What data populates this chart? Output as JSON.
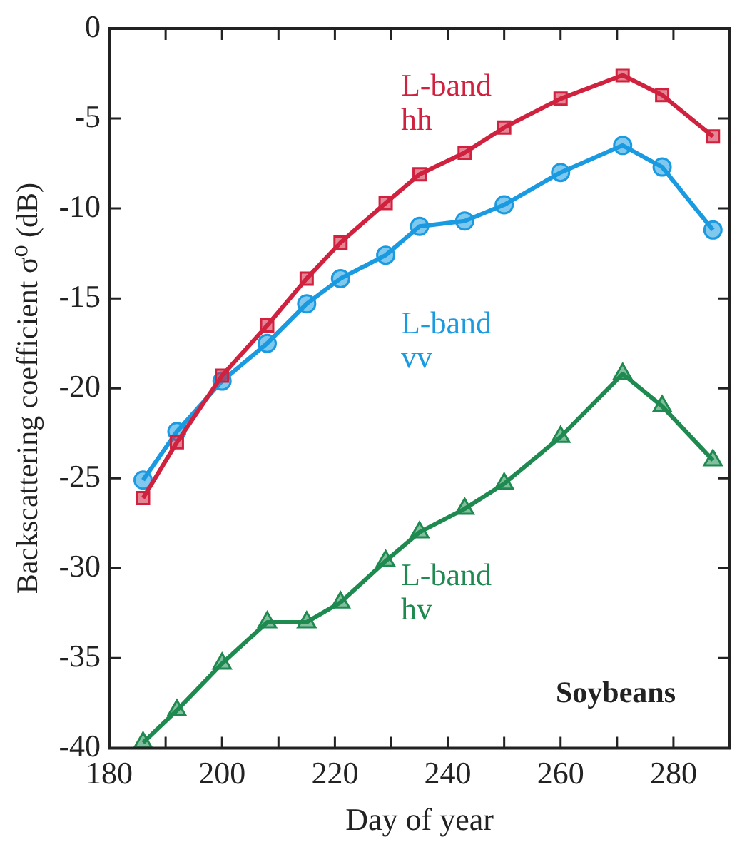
{
  "chart_data": {
    "type": "line",
    "xlabel": "Day of year",
    "ylabel": "Backscattering coefficient σ⁰ (dB)",
    "xlim": [
      180,
      290
    ],
    "xticks": [
      180,
      {
        "value": 190,
        "label": null
      },
      200,
      {
        "value": 210,
        "label": null
      },
      220,
      {
        "value": 230,
        "label": null
      },
      240,
      {
        "value": 250,
        "label": null
      },
      260,
      {
        "value": 270,
        "label": null
      },
      280,
      {
        "value": 290,
        "label": null
      }
    ],
    "ylim": [
      -40,
      0
    ],
    "yticks": [
      -40,
      -35,
      -30,
      -25,
      -20,
      -15,
      -10,
      -5,
      0
    ],
    "grid": false,
    "legend": false,
    "line_style": "solid",
    "annotations": [
      "Soybeans"
    ],
    "series": [
      {
        "name": "L-band hh",
        "color": "#d0223f",
        "marker": "square",
        "x": [
          186,
          192,
          200,
          208,
          215,
          221,
          229,
          235,
          243,
          250,
          260,
          271,
          278,
          287
        ],
        "values": [
          -26.1,
          -23.0,
          -19.3,
          -16.5,
          -13.9,
          -11.9,
          -9.7,
          -8.1,
          -6.9,
          -5.5,
          -3.9,
          -2.6,
          -3.7,
          -6.0
        ]
      },
      {
        "name": "L-band vv",
        "color": "#1a9ae0",
        "marker": "circle",
        "x": [
          186,
          192,
          200,
          208,
          215,
          221,
          229,
          235,
          243,
          250,
          260,
          271,
          278,
          287
        ],
        "values": [
          -25.1,
          -22.4,
          -19.6,
          -17.5,
          -15.3,
          -13.9,
          -12.6,
          -11.0,
          -10.7,
          -9.8,
          -8.0,
          -6.5,
          -7.7,
          -11.2
        ]
      },
      {
        "name": "L-band hv",
        "color": "#1e8a50",
        "marker": "triangle",
        "x": [
          186,
          192,
          200,
          208,
          215,
          221,
          229,
          235,
          243,
          250,
          260,
          271,
          278,
          287
        ],
        "values": [
          -39.7,
          -37.9,
          -35.3,
          -33.0,
          -33.0,
          -31.9,
          -29.6,
          -28.0,
          -26.7,
          -25.3,
          -22.7,
          -19.2,
          -21.0,
          -24.0
        ]
      }
    ]
  }
}
